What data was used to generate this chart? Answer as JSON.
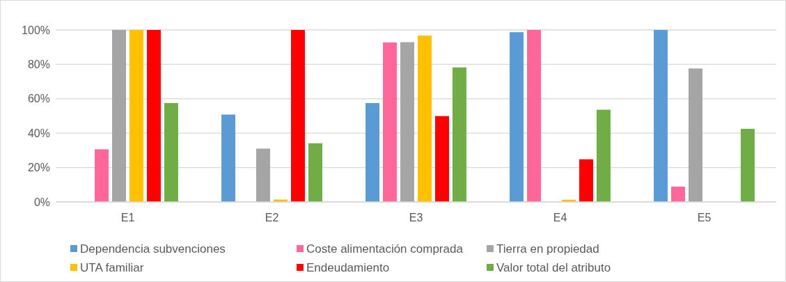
{
  "chart_data": {
    "type": "bar",
    "categories": [
      "E1",
      "E2",
      "E3",
      "E4",
      "E5"
    ],
    "series": [
      {
        "name": "Dependencia subvenciones",
        "color": "#5b9bd5",
        "values": [
          0,
          50.8,
          57.5,
          98.7,
          100
        ]
      },
      {
        "name": "Coste alimentación comprada",
        "color": "#ff6699",
        "values": [
          30.6,
          0,
          92.7,
          100,
          8.9
        ]
      },
      {
        "name": "Tierra en propiedad",
        "color": "#a5a5a5",
        "values": [
          100,
          31.0,
          92.9,
          0,
          77.6
        ]
      },
      {
        "name": "UTA familiar",
        "color": "#ffc000",
        "values": [
          100,
          1.4,
          96.7,
          1.3,
          0
        ]
      },
      {
        "name": "Endeudamiento",
        "color": "#ff0000",
        "values": [
          100,
          100,
          49.9,
          24.8,
          0
        ]
      },
      {
        "name": "Valor total del atributo",
        "color": "#70ad47",
        "values": [
          57.5,
          34.1,
          78.2,
          53.6,
          42.5
        ]
      }
    ],
    "ylim": [
      0,
      100
    ],
    "yticks": [
      {
        "value": 0,
        "label": "0%"
      },
      {
        "value": 20,
        "label": "20%"
      },
      {
        "value": 40,
        "label": "40%"
      },
      {
        "value": 60,
        "label": "60%"
      },
      {
        "value": 80,
        "label": "80%"
      },
      {
        "value": 100,
        "label": "100%"
      }
    ],
    "grid": "y",
    "legend": "bottom"
  }
}
